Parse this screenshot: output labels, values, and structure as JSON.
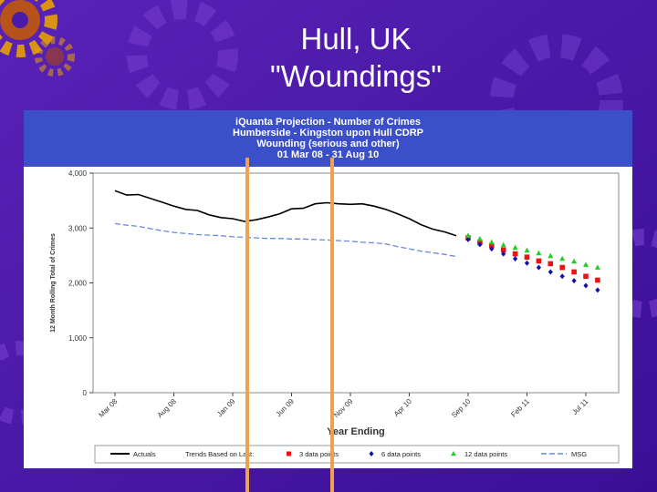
{
  "slide": {
    "title_line1": "Hull, UK",
    "title_line2": "\"Woundings\"",
    "background_color": "#4a1aa8",
    "gear_color": "#e8a000"
  },
  "chart_data": {
    "type": "line",
    "title_lines": [
      "iQuanta Projection - Number of Crimes",
      "Humberside - Kingston upon Hull CDRP",
      "Wounding (serious and other)",
      "01 Mar 08 - 31 Aug 10"
    ],
    "xlabel": "Year Ending",
    "ylabel": "12 Month Rolling Total of Crimes",
    "ylim": [
      0,
      4000
    ],
    "yticks": [
      0,
      1000,
      2000,
      3000,
      4000
    ],
    "ytick_labels": [
      "0",
      "1,000",
      "2,000",
      "3,000",
      "4,000"
    ],
    "x_range_months": [
      "Mar 08",
      "Sep 11"
    ],
    "xticks": [
      {
        "label": "Mar 08",
        "month": 0
      },
      {
        "label": "Aug 08",
        "month": 5
      },
      {
        "label": "Jan 09",
        "month": 10
      },
      {
        "label": "Jun 09",
        "month": 15
      },
      {
        "label": "Nov 09",
        "month": 20
      },
      {
        "label": "Apr 10",
        "month": 25
      },
      {
        "label": "Sep 10",
        "month": 30
      },
      {
        "label": "Feb 11",
        "month": 35
      },
      {
        "label": "Jul 11",
        "month": 40
      }
    ],
    "grid": false,
    "legend_position": "bottom",
    "legend_heading": "Trends Based on Last:",
    "series": [
      {
        "name": "Actuals",
        "style": "line",
        "color": "#000000",
        "x_month": [
          0,
          1,
          2,
          3,
          4,
          5,
          6,
          7,
          8,
          9,
          10,
          11,
          12,
          13,
          14,
          15,
          16,
          17,
          18,
          19,
          20,
          21,
          22,
          23,
          24,
          25,
          26,
          27,
          28,
          29
        ],
        "values": [
          3680,
          3600,
          3610,
          3540,
          3470,
          3400,
          3340,
          3320,
          3240,
          3190,
          3170,
          3120,
          3150,
          3200,
          3260,
          3350,
          3360,
          3440,
          3460,
          3440,
          3430,
          3440,
          3400,
          3340,
          3260,
          3170,
          3060,
          2980,
          2930,
          2860
        ]
      },
      {
        "name": "MSG",
        "style": "dashed",
        "color": "#6688dd",
        "x_month": [
          0,
          1,
          2,
          3,
          4,
          5,
          6,
          7,
          8,
          9,
          10,
          11,
          12,
          13,
          14,
          15,
          16,
          17,
          18,
          19,
          20,
          21,
          22,
          23,
          24,
          25,
          26,
          27,
          28,
          29
        ],
        "values": [
          3080,
          3050,
          3030,
          2990,
          2950,
          2920,
          2900,
          2880,
          2870,
          2860,
          2840,
          2830,
          2820,
          2810,
          2810,
          2800,
          2800,
          2790,
          2780,
          2770,
          2760,
          2740,
          2730,
          2710,
          2660,
          2620,
          2580,
          2550,
          2520,
          2480
        ]
      },
      {
        "name": "3 data points",
        "style": "square",
        "color": "#ee1111",
        "x_month": [
          30,
          31,
          32,
          33,
          34,
          35,
          36,
          37,
          38,
          39,
          40,
          41
        ],
        "values": [
          2820,
          2740,
          2680,
          2600,
          2530,
          2470,
          2400,
          2350,
          2280,
          2200,
          2120,
          2050
        ]
      },
      {
        "name": "6 data points",
        "style": "diamond",
        "color": "#1111aa",
        "x_month": [
          30,
          31,
          32,
          33,
          34,
          35,
          36,
          37,
          38,
          39,
          40,
          41
        ],
        "values": [
          2790,
          2700,
          2620,
          2530,
          2440,
          2360,
          2280,
          2200,
          2120,
          2040,
          1950,
          1870
        ]
      },
      {
        "name": "12 data points",
        "style": "triangle",
        "color": "#22cc22",
        "x_month": [
          30,
          31,
          32,
          33,
          34,
          35,
          36,
          37,
          38,
          39,
          40,
          41
        ],
        "values": [
          2860,
          2800,
          2740,
          2690,
          2640,
          2590,
          2540,
          2490,
          2440,
          2390,
          2330,
          2280
        ]
      }
    ]
  }
}
